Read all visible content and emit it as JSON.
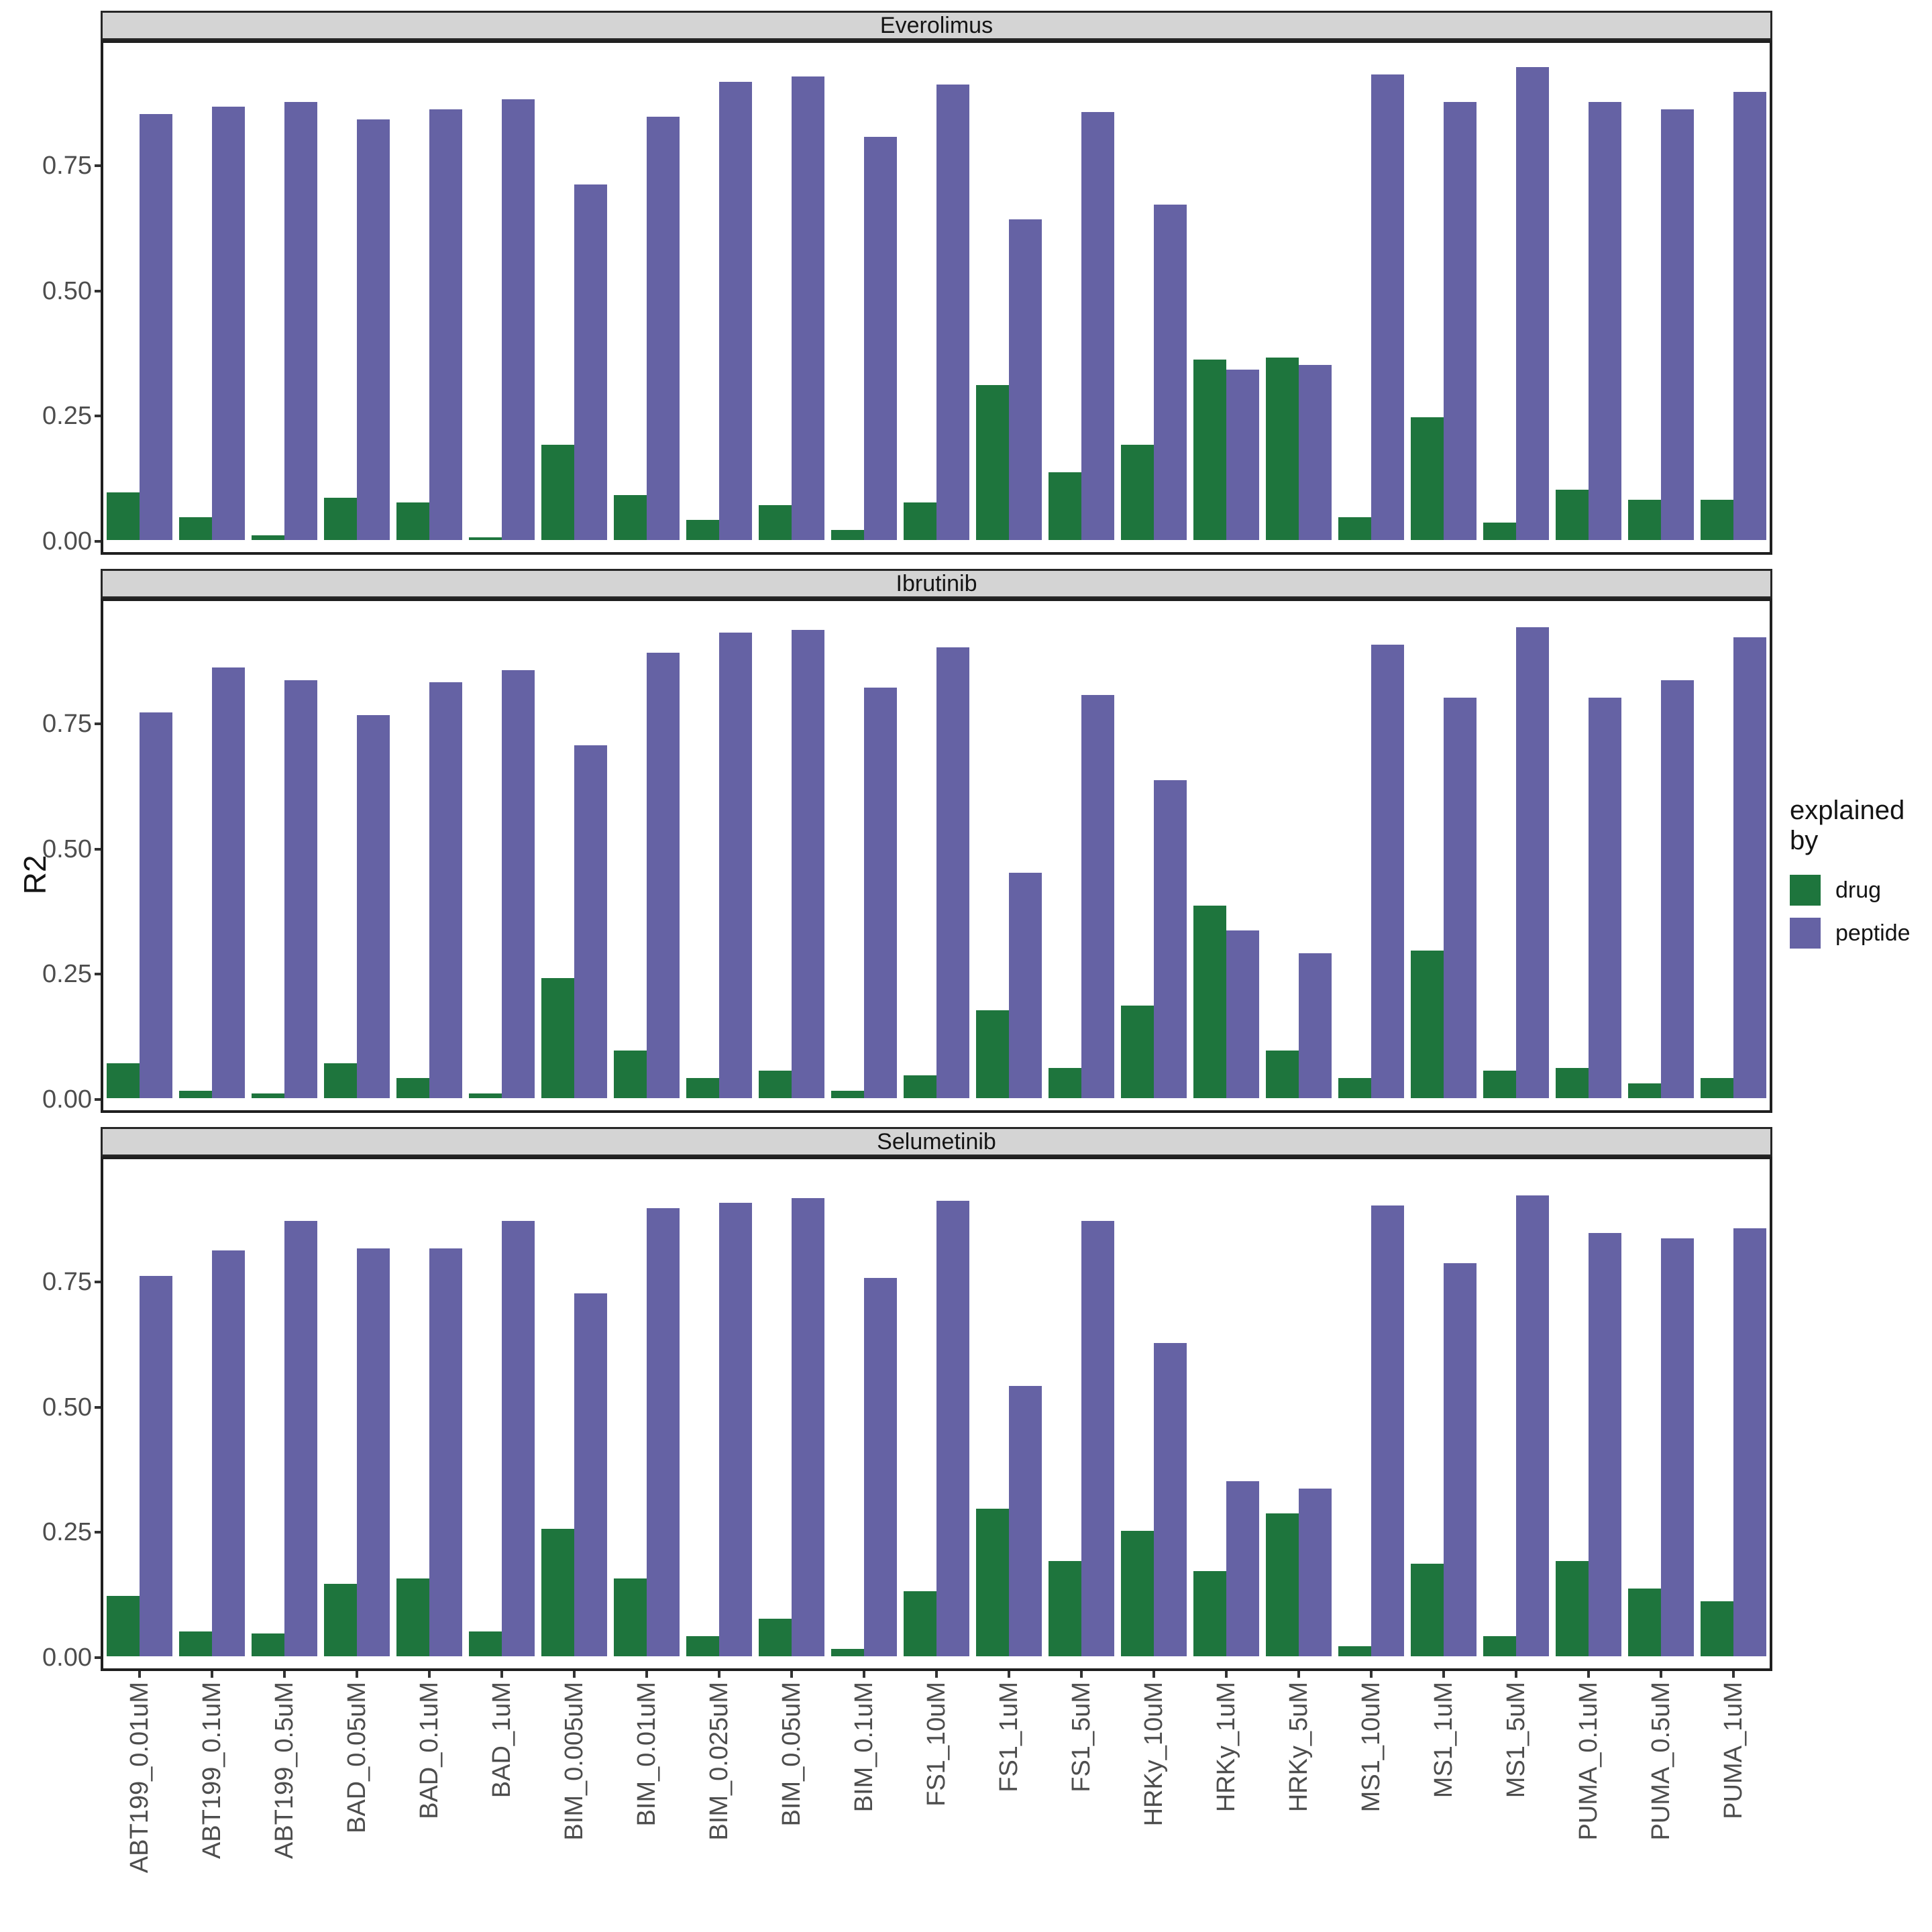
{
  "chart_data": {
    "type": "bar",
    "title": "",
    "xlabel": "",
    "ylabel": "R2",
    "legend_title": "explained by",
    "legend_position": "right",
    "grid": false,
    "facet_layout": "3 stacked panels sharing x axis",
    "y_ticks": [
      0,
      0.25,
      0.5,
      0.75
    ],
    "y_tick_labels": [
      "0.00",
      "0.25",
      "0.50",
      "0.75"
    ],
    "ylim": [
      -0.02,
      0.97
    ],
    "series_names": [
      "drug",
      "peptide"
    ],
    "colors": {
      "drug": "#1e753d",
      "peptide": "#6562a4"
    },
    "categories": [
      "ABT199_0.01uM",
      "ABT199_0.1uM",
      "ABT199_0.5uM",
      "BAD_0.05uM",
      "BAD_0.1uM",
      "BAD_1uM",
      "BIM_0.005uM",
      "BIM_0.01uM",
      "BIM_0.025uM",
      "BIM_0.05uM",
      "BIM_0.1uM",
      "FS1_10uM",
      "FS1_1uM",
      "FS1_5uM",
      "HRKy_10uM",
      "HRKy_1uM",
      "HRKy_5uM",
      "MS1_10uM",
      "MS1_1uM",
      "MS1_5uM",
      "PUMA_0.1uM",
      "PUMA_0.5uM",
      "PUMA_1uM"
    ],
    "facets": [
      {
        "title": "Everolimus",
        "series": [
          {
            "name": "drug",
            "values": [
              0.095,
              0.045,
              0.01,
              0.085,
              0.075,
              0.005,
              0.19,
              0.09,
              0.04,
              0.07,
              0.02,
              0.075,
              0.31,
              0.135,
              0.19,
              0.36,
              0.365,
              0.045,
              0.245,
              0.035,
              0.1,
              0.08,
              0.08
            ]
          },
          {
            "name": "peptide",
            "values": [
              0.85,
              0.865,
              0.875,
              0.84,
              0.86,
              0.88,
              0.71,
              0.845,
              0.915,
              0.925,
              0.805,
              0.91,
              0.64,
              0.855,
              0.67,
              0.34,
              0.35,
              0.93,
              0.875,
              0.945,
              0.875,
              0.86,
              0.895
            ]
          }
        ]
      },
      {
        "title": "Ibrutinib",
        "series": [
          {
            "name": "drug",
            "values": [
              0.07,
              0.015,
              0.01,
              0.07,
              0.04,
              0.01,
              0.24,
              0.095,
              0.04,
              0.055,
              0.015,
              0.045,
              0.175,
              0.06,
              0.185,
              0.385,
              0.095,
              0.04,
              0.295,
              0.055,
              0.06,
              0.03,
              0.04
            ]
          },
          {
            "name": "peptide",
            "values": [
              0.77,
              0.86,
              0.835,
              0.765,
              0.83,
              0.855,
              0.705,
              0.89,
              0.93,
              0.935,
              0.82,
              0.9,
              0.45,
              0.805,
              0.635,
              0.335,
              0.29,
              0.905,
              0.8,
              0.94,
              0.8,
              0.835,
              0.92
            ]
          }
        ]
      },
      {
        "title": "Selumetinib",
        "series": [
          {
            "name": "drug",
            "values": [
              0.12,
              0.05,
              0.045,
              0.145,
              0.155,
              0.05,
              0.255,
              0.155,
              0.04,
              0.075,
              0.015,
              0.13,
              0.295,
              0.19,
              0.25,
              0.17,
              0.285,
              0.02,
              0.185,
              0.04,
              0.19,
              0.135,
              0.11
            ]
          },
          {
            "name": "peptide",
            "values": [
              0.76,
              0.81,
              0.87,
              0.815,
              0.815,
              0.87,
              0.725,
              0.895,
              0.905,
              0.915,
              0.755,
              0.91,
              0.54,
              0.87,
              0.625,
              0.35,
              0.335,
              0.9,
              0.785,
              0.92,
              0.845,
              0.835,
              0.855
            ]
          }
        ]
      }
    ]
  },
  "theme": {
    "background": "#ffffff",
    "strip_background": "#d4d4d4",
    "panel_border": "#1f1f1f",
    "tick_text_color": "#4d4d4d",
    "text_color": "#141414"
  }
}
